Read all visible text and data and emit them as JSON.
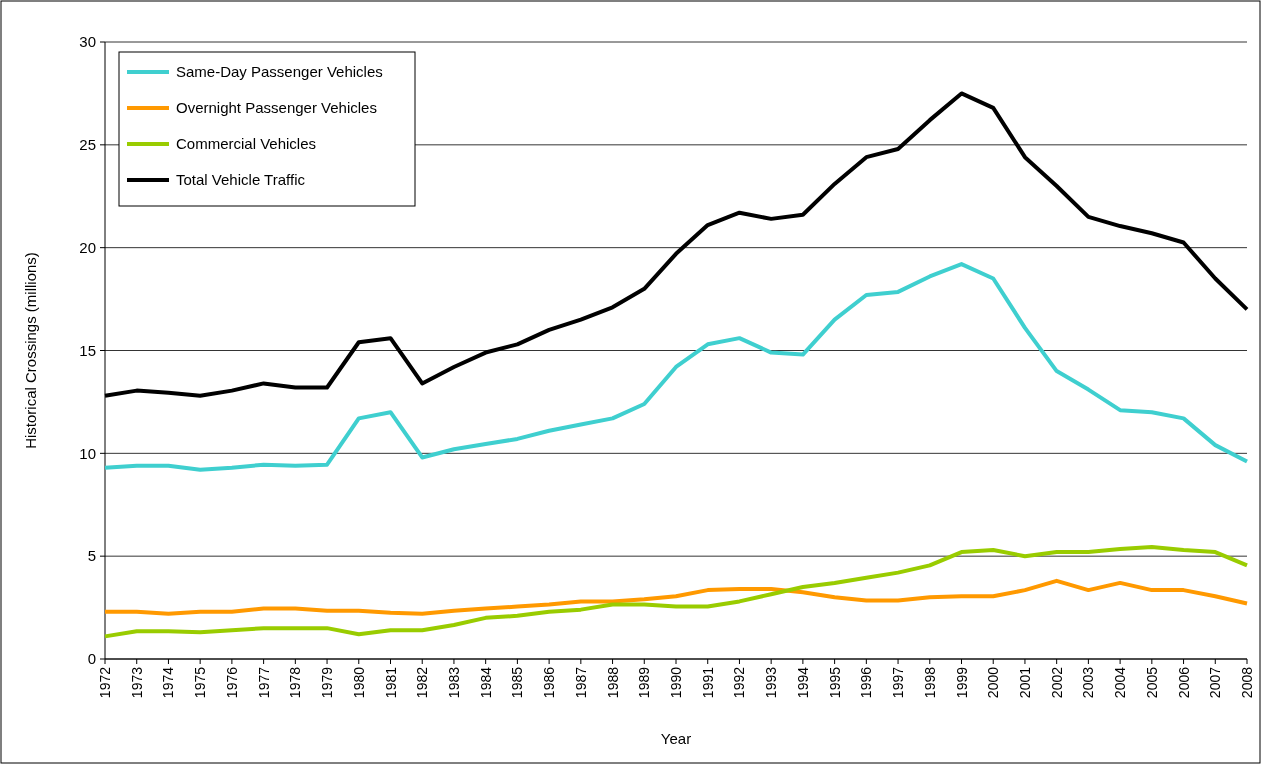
{
  "chart_data": {
    "type": "line",
    "xlabel": "Year",
    "ylabel": "Historical Crossings (millions)",
    "categories": [
      "1972",
      "1973",
      "1974",
      "1975",
      "1976",
      "1977",
      "1978",
      "1979",
      "1980",
      "1981",
      "1982",
      "1983",
      "1984",
      "1985",
      "1986",
      "1987",
      "1988",
      "1989",
      "1990",
      "1991",
      "1992",
      "1993",
      "1994",
      "1995",
      "1996",
      "1997",
      "1998",
      "1999",
      "2000",
      "2001",
      "2002",
      "2003",
      "2004",
      "2005",
      "2006",
      "2007",
      "2008"
    ],
    "series": [
      {
        "name": "Same-Day Passenger Vehicles",
        "color": "#3fcfcf",
        "values": [
          9.3,
          9.4,
          9.4,
          9.2,
          9.3,
          9.45,
          9.4,
          9.45,
          11.7,
          12.0,
          9.8,
          10.2,
          10.45,
          10.7,
          11.1,
          11.4,
          11.7,
          12.4,
          14.2,
          15.3,
          15.6,
          14.9,
          14.8,
          16.5,
          17.7,
          17.85,
          18.6,
          19.2,
          18.5,
          16.1,
          14.0,
          13.1,
          12.1,
          12.0,
          11.7,
          10.4,
          9.6
        ]
      },
      {
        "name": "Overnight Passenger Vehicles",
        "color": "#ff9900",
        "values": [
          2.3,
          2.3,
          2.2,
          2.3,
          2.3,
          2.45,
          2.45,
          2.35,
          2.35,
          2.25,
          2.2,
          2.35,
          2.45,
          2.55,
          2.65,
          2.8,
          2.8,
          2.9,
          3.05,
          3.35,
          3.4,
          3.4,
          3.25,
          3.0,
          2.85,
          2.85,
          3.0,
          3.05,
          3.05,
          3.35,
          3.8,
          3.35,
          3.7,
          3.35,
          3.35,
          3.05,
          2.7
        ]
      },
      {
        "name": "Commercial Vehicles",
        "color": "#99cc00",
        "values": [
          1.1,
          1.35,
          1.35,
          1.3,
          1.4,
          1.5,
          1.5,
          1.5,
          1.2,
          1.4,
          1.4,
          1.65,
          2.0,
          2.1,
          2.3,
          2.4,
          2.65,
          2.65,
          2.55,
          2.55,
          2.8,
          3.15,
          3.5,
          3.7,
          3.95,
          4.2,
          4.55,
          5.2,
          5.3,
          5.0,
          5.2,
          5.2,
          5.35,
          5.45,
          5.3,
          5.2,
          4.55
        ]
      },
      {
        "name": "Total Vehicle Traffic",
        "color": "#000000",
        "values": [
          12.8,
          13.05,
          12.95,
          12.8,
          13.05,
          13.4,
          13.2,
          13.2,
          15.4,
          15.6,
          13.4,
          14.2,
          14.9,
          15.3,
          16.0,
          16.5,
          17.1,
          18.0,
          19.7,
          21.1,
          21.7,
          21.4,
          21.6,
          23.1,
          24.4,
          24.8,
          26.2,
          27.5,
          26.8,
          24.4,
          23.0,
          21.5,
          21.05,
          20.7,
          20.25,
          18.5,
          17.0
        ]
      }
    ],
    "ylim": [
      0,
      30
    ],
    "yticks": [
      0,
      5,
      10,
      15,
      20,
      25,
      30
    ],
    "grid": "y",
    "legend": "top left",
    "marker": "none",
    "line_style": "solid"
  }
}
